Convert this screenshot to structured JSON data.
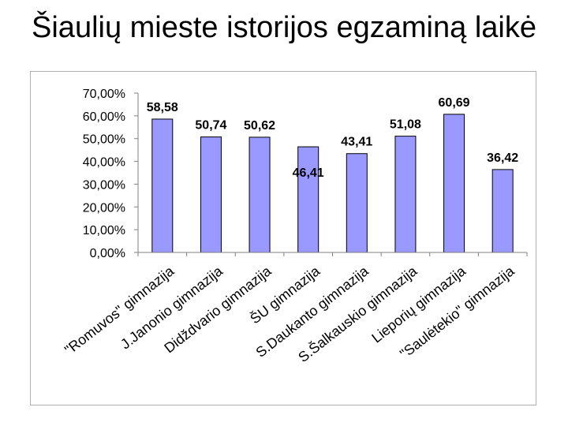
{
  "title": "Šiaulių mieste istorijos egzaminą laikė",
  "chart_data": {
    "type": "bar",
    "categories": [
      "\"Romuvos\" gimnazija",
      "J.Janonio gimnazija",
      "Didždvario gimnazija",
      "ŠU gimnazija",
      "S.Daukanto gimnazija",
      "S.Šalkauskio gimnazija",
      "Lieporių gimnazija",
      "\"Saulėtekio\" gimnazija"
    ],
    "values": [
      58.58,
      50.74,
      50.62,
      46.41,
      43.41,
      51.08,
      60.69,
      36.42
    ],
    "data_labels": [
      "58,58",
      "50,74",
      "50,62",
      "46,41",
      "43,41",
      "51,08",
      "60,69",
      "36,42"
    ],
    "label_position": [
      "above",
      "above",
      "above",
      "below",
      "above",
      "above",
      "above",
      "above"
    ],
    "y_ticks": [
      "0,00%",
      "10,00%",
      "20,00%",
      "30,00%",
      "40,00%",
      "50,00%",
      "60,00%",
      "70,00%"
    ],
    "ylim": [
      0,
      70
    ],
    "grid": false,
    "legend": "none",
    "bar_color": "#9999ff",
    "bar_stroke": "#000000",
    "axis_color": "#808080"
  }
}
